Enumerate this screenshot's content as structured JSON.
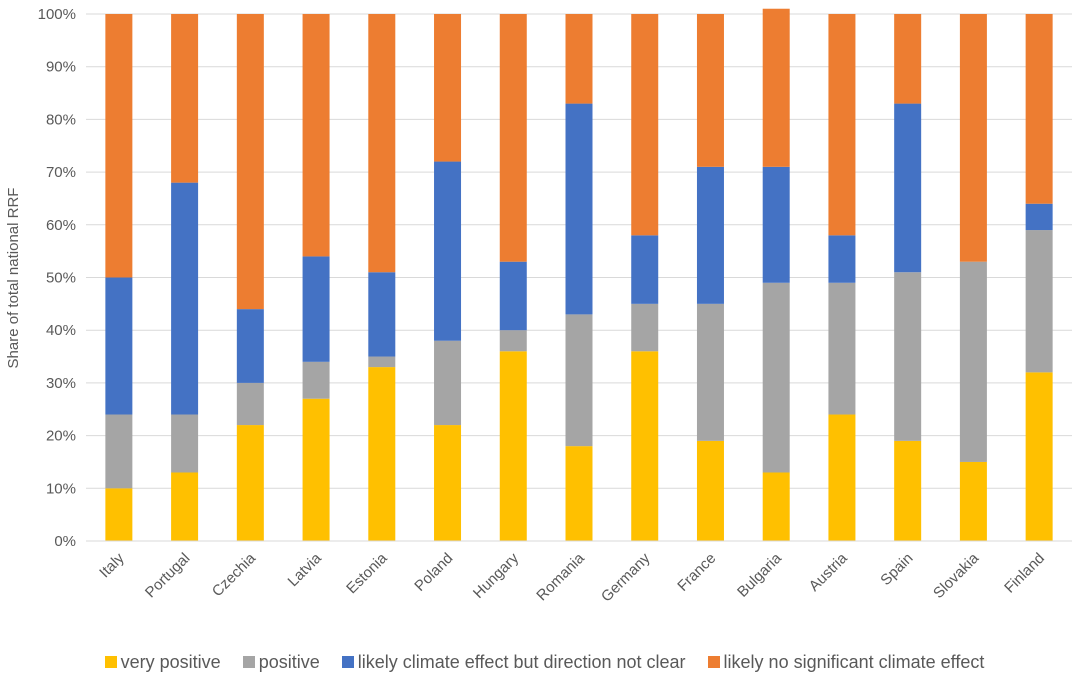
{
  "chart_data": {
    "type": "bar",
    "stacked": true,
    "categories": [
      "Italy",
      "Portugal",
      "Czechia",
      "Latvia",
      "Estonia",
      "Poland",
      "Hungary",
      "Romania",
      "Germany",
      "France",
      "Bulgaria",
      "Austria",
      "Spain",
      "Slovakia",
      "Finland"
    ],
    "series": [
      {
        "name": "very positive",
        "color": "#FFC000",
        "values": [
          10,
          13,
          22,
          27,
          33,
          22,
          36,
          18,
          36,
          19,
          13,
          24,
          19,
          15,
          32
        ]
      },
      {
        "name": "positive",
        "color": "#A5A5A5",
        "values": [
          14,
          11,
          8,
          7,
          2,
          16,
          4,
          25,
          9,
          26,
          36,
          25,
          32,
          38,
          27
        ]
      },
      {
        "name": "likely climate effect but direction not clear",
        "color": "#4472C4",
        "values": [
          26,
          44,
          14,
          20,
          16,
          34,
          13,
          40,
          13,
          26,
          22,
          9,
          32,
          0,
          5
        ]
      },
      {
        "name": "likely no significant climate effect",
        "color": "#ED7D31",
        "values": [
          50,
          32,
          56,
          46,
          49,
          28,
          47,
          17,
          42,
          29,
          30,
          42,
          17,
          47,
          36
        ]
      }
    ],
    "ylabel": "Share of total national RRF",
    "ylim": [
      0,
      100
    ],
    "yticks": [
      "0%",
      "10%",
      "20%",
      "30%",
      "40%",
      "50%",
      "60%",
      "70%",
      "80%",
      "90%",
      "100%"
    ],
    "grid": true,
    "legend_position": "bottom"
  }
}
